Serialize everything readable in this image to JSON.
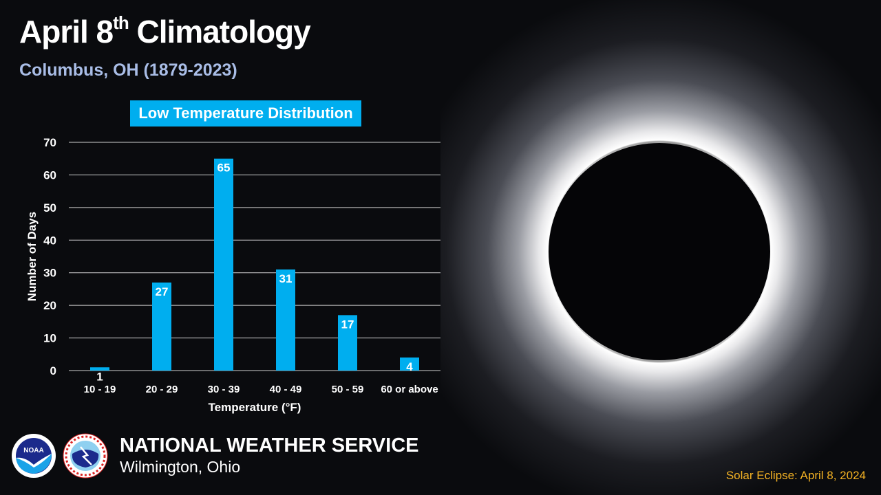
{
  "header": {
    "title_main": "April 8",
    "title_sup": "th",
    "title_rest": " Climatology",
    "subtitle": "Columbus, OH (1879-2023)"
  },
  "chart_data": {
    "type": "bar",
    "title": "Low Temperature Distribution",
    "xlabel": "Temperature (°F)",
    "ylabel": "Number of Days",
    "categories": [
      "10 - 19",
      "20 - 29",
      "30 - 39",
      "40 - 49",
      "50 - 59",
      "60 or above"
    ],
    "values": [
      1,
      27,
      65,
      31,
      17,
      4
    ],
    "ylim": [
      0,
      70
    ],
    "yticks": [
      0,
      10,
      20,
      30,
      40,
      50,
      60,
      70
    ],
    "grid": true,
    "bar_color": "#00aeef"
  },
  "footer": {
    "org": "NATIONAL WEATHER SERVICE",
    "office": "Wilmington, Ohio",
    "logos": {
      "noaa": "NOAA",
      "nws": "NATIONAL WEATHER SERVICE"
    },
    "credit": "Solar Eclipse: April 8, 2024"
  }
}
